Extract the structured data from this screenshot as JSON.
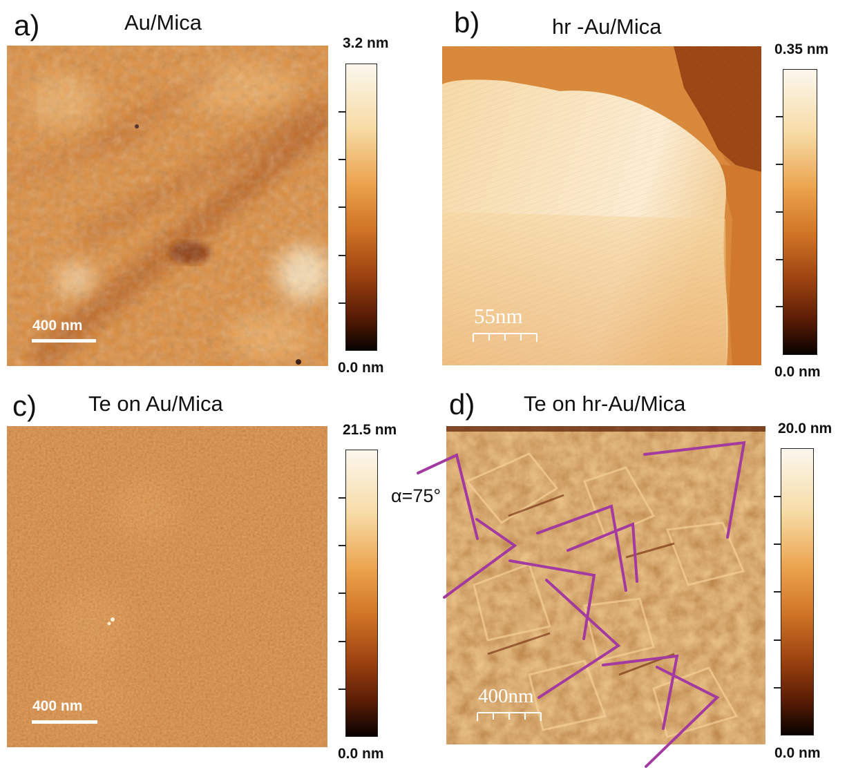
{
  "panels": {
    "a": {
      "label": "a)",
      "title": "Au/Mica",
      "cbar_max": "3.2 nm",
      "cbar_min": "0.0 nm",
      "scalebar": "400 nm"
    },
    "b": {
      "label": "b)",
      "title": "hr -Au/Mica",
      "cbar_max": "0.35 nm",
      "cbar_min": "0.0 nm",
      "scalebar": "55nm"
    },
    "c": {
      "label": "c)",
      "title": "Te on Au/Mica",
      "cbar_max": "21.5 nm",
      "cbar_min": "0.0 nm",
      "scalebar": "400 nm"
    },
    "d": {
      "label": "d)",
      "title": "Te on hr-Au/Mica",
      "cbar_max": "20.0 nm",
      "cbar_min": "0.0 nm",
      "scalebar": "400nm",
      "angle": "α=75°"
    }
  },
  "colors": {
    "afm_colormap": [
      "#090200",
      "#5a1c05",
      "#9c4210",
      "#cf7325",
      "#eba24c",
      "#f7dca6",
      "#fbf7ee"
    ],
    "angle_lines": "#a23aa0"
  }
}
